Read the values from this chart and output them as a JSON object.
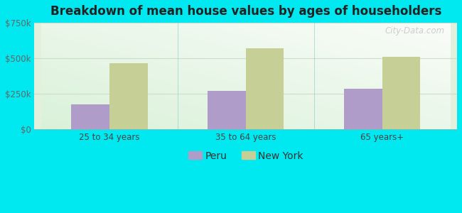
{
  "title": "Breakdown of mean house values by ages of householders",
  "categories": [
    "25 to 34 years",
    "35 to 64 years",
    "65 years+"
  ],
  "peru_values": [
    175000,
    270000,
    285000
  ],
  "newyork_values": [
    465000,
    570000,
    510000
  ],
  "peru_color": "#b09cc8",
  "newyork_color": "#c5cf96",
  "background_outer": "#00e8f0",
  "ylim": [
    0,
    750000
  ],
  "yticks": [
    0,
    250000,
    500000,
    750000
  ],
  "ytick_labels": [
    "$0",
    "$250k",
    "$500k",
    "$750k"
  ],
  "bar_width": 0.28,
  "legend_labels": [
    "Peru",
    "New York"
  ],
  "watermark": "City-Data.com"
}
